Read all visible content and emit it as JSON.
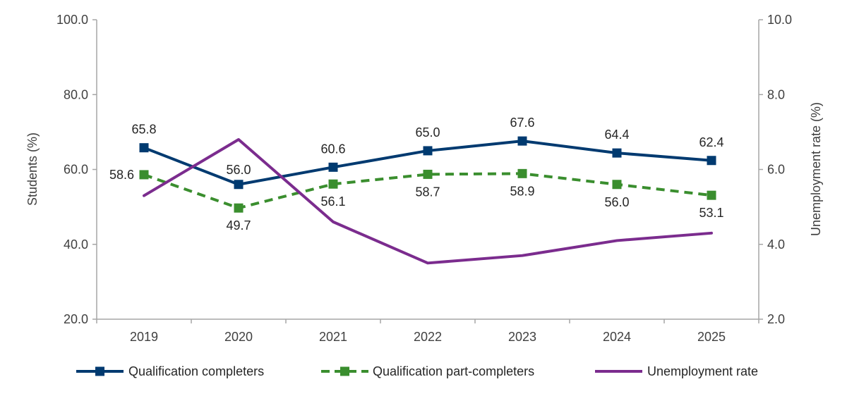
{
  "chart_data": {
    "type": "line",
    "x": [
      "2019",
      "2020",
      "2021",
      "2022",
      "2023",
      "2024",
      "2025"
    ],
    "series": [
      {
        "name": "Qualification completers",
        "axis": "left",
        "values": [
          65.8,
          56.0,
          60.6,
          65.0,
          67.6,
          64.4,
          62.4
        ],
        "labels": [
          "65.8",
          "56.0",
          "60.6",
          "65.0",
          "67.6",
          "64.4",
          "62.4"
        ],
        "color": "#003A70",
        "style": "solid",
        "marker": "square"
      },
      {
        "name": "Qualification part-completers",
        "axis": "left",
        "values": [
          58.6,
          49.7,
          56.1,
          58.7,
          58.9,
          56.0,
          53.1
        ],
        "labels": [
          "58.6",
          "49.7",
          "56.1",
          "58.7",
          "58.9",
          "56.0",
          "53.1"
        ],
        "color": "#3A8E2E",
        "style": "dashed",
        "marker": "square"
      },
      {
        "name": "Unemployment rate",
        "axis": "right",
        "values": [
          5.3,
          6.8,
          4.6,
          3.5,
          3.7,
          4.1,
          4.3
        ],
        "color": "#7B2C8E",
        "style": "solid",
        "marker": "none"
      }
    ],
    "ylabel": "Students (%)",
    "ylim": [
      20,
      100
    ],
    "yticks": [
      "100.0",
      "80.0",
      "60.0",
      "40.0",
      "20.0"
    ],
    "y2label": "Unemployment rate (%)",
    "y2lim": [
      2,
      10
    ],
    "y2ticks": [
      "10.0",
      "8.0",
      "6.0",
      "4.0",
      "2.0"
    ],
    "grid": false,
    "legend": "bottom"
  }
}
